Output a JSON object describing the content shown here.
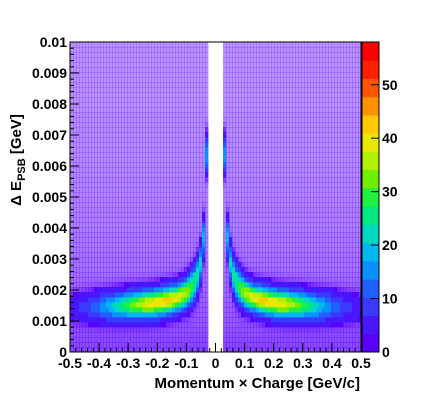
{
  "chart_data": {
    "type": "heatmap",
    "xlabel": "Momentum × Charge [GeV/c]",
    "ylabel_main": "Δ E",
    "ylabel_sub": "PSB",
    "ylabel_unit": " [GeV]",
    "xlim": [
      -0.5,
      0.5
    ],
    "ylim": [
      0,
      0.01
    ],
    "x_ticks": [
      "-0.5",
      "-0.4",
      "-0.3",
      "-0.2",
      "-0.1",
      "0",
      "0.1",
      "0.2",
      "0.3",
      "0.4",
      "0.5"
    ],
    "y_ticks": [
      "0",
      "0.001",
      "0.002",
      "0.003",
      "0.004",
      "0.005",
      "0.006",
      "0.007",
      "0.008",
      "0.009",
      "0.01"
    ],
    "zlim": [
      0,
      58
    ],
    "z_ticks": [
      "0",
      "10",
      "20",
      "30",
      "40",
      "50"
    ],
    "z_tick_values": [
      0,
      10,
      20,
      30,
      40,
      50
    ],
    "no_data_region": [
      -0.03,
      0.03
    ],
    "band_peak": {
      "x_abs": 0.18,
      "y": 0.0017,
      "z": 40
    },
    "colors": {
      "low": "#5a1fe6",
      "mid": "#16d6d0",
      "high": "#ffcc00",
      "max": "#ff0000"
    },
    "palette": [
      "#5a00ff",
      "#4a15ff",
      "#3a3aff",
      "#2060ff",
      "#0a90ff",
      "#00b8f0",
      "#00d8c0",
      "#00e880",
      "#20f040",
      "#70f000",
      "#b0f000",
      "#e8e800",
      "#ffc800",
      "#ff9000",
      "#ff5500",
      "#ff2000",
      "#ff0000"
    ]
  }
}
